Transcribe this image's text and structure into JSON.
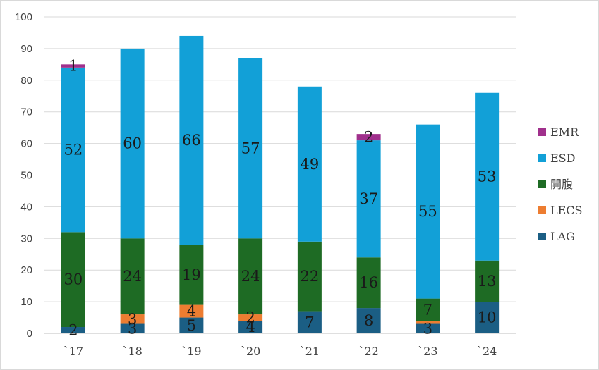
{
  "chart_data": {
    "type": "bar",
    "stacked": true,
    "categories": [
      "`17",
      "`18",
      "`19",
      "`20",
      "`21",
      "`22",
      "`23",
      "`24"
    ],
    "series": [
      {
        "name": "LAG",
        "color": "#1b5e84",
        "values": [
          2,
          3,
          5,
          4,
          7,
          8,
          3,
          10
        ]
      },
      {
        "name": "LECS",
        "color": "#ed7d31",
        "values": [
          0,
          3,
          4,
          2,
          0,
          0,
          1,
          0
        ]
      },
      {
        "name": "開腹",
        "color": "#1e6b24",
        "values": [
          30,
          24,
          19,
          24,
          22,
          16,
          7,
          13
        ]
      },
      {
        "name": "ESD",
        "color": "#12a0d7",
        "values": [
          52,
          60,
          66,
          57,
          49,
          37,
          55,
          53
        ]
      },
      {
        "name": "EMR",
        "color": "#a0308c",
        "values": [
          1,
          0,
          0,
          0,
          0,
          2,
          0,
          0
        ]
      }
    ],
    "data_labels": [
      {
        "series": "LAG",
        "values": [
          "2",
          "3",
          "5",
          "4",
          "7",
          "8",
          "3",
          "10"
        ]
      },
      {
        "series": "LECS",
        "values": [
          "",
          "3",
          "4",
          "2",
          "",
          "",
          "",
          ""
        ]
      },
      {
        "series": "開腹",
        "values": [
          "30",
          "24",
          "19",
          "24",
          "22",
          "16",
          "7",
          "13"
        ]
      },
      {
        "series": "ESD",
        "values": [
          "52",
          "60",
          "66",
          "57",
          "49",
          "37",
          "55",
          "53"
        ]
      },
      {
        "series": "EMR",
        "values": [
          "1",
          "",
          "",
          "",
          "",
          "2",
          "",
          ""
        ]
      }
    ],
    "ylim": [
      0,
      100
    ],
    "yticks": [
      0,
      10,
      20,
      30,
      40,
      50,
      60,
      70,
      80,
      90,
      100
    ],
    "grid": true,
    "legend_position": "right",
    "legend_order": [
      "EMR",
      "ESD",
      "開腹",
      "LECS",
      "LAG"
    ],
    "title": "",
    "xlabel": "",
    "ylabel": ""
  }
}
